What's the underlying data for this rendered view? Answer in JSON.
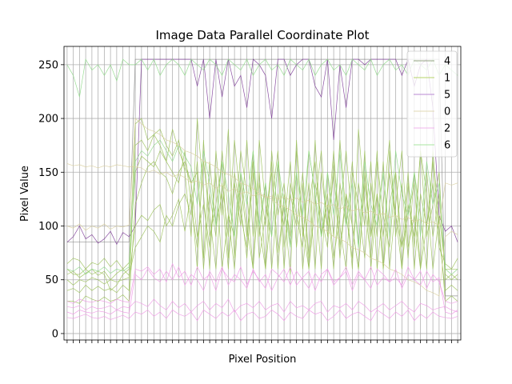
{
  "chart_data": {
    "type": "line",
    "title": "Image Data Parallel Coordinate Plot",
    "xlabel": "Pixel Position",
    "ylabel": "Pixel Value",
    "ylim": [
      -6,
      267
    ],
    "yticks": [
      0,
      50,
      100,
      150,
      200,
      250
    ],
    "x_count": 64,
    "grid": true,
    "legend": {
      "placement": "top-right",
      "entries": [
        {
          "label": "4",
          "color": "#94a383"
        },
        {
          "label": "1",
          "color": "#b5d36a"
        },
        {
          "label": "5",
          "color": "#b88ad3"
        },
        {
          "label": "0",
          "color": "#e0d9b4"
        },
        {
          "label": "2",
          "color": "#f0b4ec"
        },
        {
          "label": "6",
          "color": "#a8e6a0"
        }
      ]
    },
    "series": [
      {
        "class": "4",
        "color": "#8a8a8a",
        "values": [
          85,
          85,
          85,
          85,
          85,
          85,
          85,
          85,
          85,
          85,
          85,
          255,
          255,
          255,
          255,
          255,
          255,
          255,
          255,
          255,
          255,
          255,
          255,
          255,
          255,
          255,
          255,
          255,
          255,
          255,
          255,
          255,
          255,
          255,
          255,
          255,
          255,
          255,
          255,
          255,
          255,
          255,
          255,
          255,
          255,
          255,
          255,
          255,
          255,
          255,
          255,
          255,
          255,
          255,
          255,
          255,
          255,
          255,
          255,
          255,
          255,
          35,
          35,
          35
        ]
      },
      {
        "class": "5",
        "color": "#7d3c98",
        "values": [
          85,
          90,
          100,
          88,
          92,
          84,
          88,
          95,
          83,
          94,
          90,
          100,
          255,
          255,
          255,
          255,
          255,
          255,
          255,
          255,
          255,
          230,
          255,
          200,
          255,
          220,
          255,
          230,
          240,
          210,
          255,
          250,
          240,
          200,
          255,
          255,
          240,
          250,
          255,
          255,
          230,
          220,
          255,
          180,
          250,
          210,
          255,
          255,
          250,
          255,
          255,
          255,
          255,
          255,
          240,
          255,
          230,
          250,
          255,
          210,
          110,
          95,
          100,
          85
        ]
      },
      {
        "class": "1a",
        "color": "#9bc15a",
        "values": [
          60,
          55,
          55,
          60,
          55,
          58,
          55,
          40,
          45,
          55,
          60,
          195,
          200,
          180,
          185,
          175,
          160,
          190,
          170,
          155,
          140,
          90,
          120,
          80,
          150,
          60,
          110,
          90,
          170,
          130,
          60,
          140,
          100,
          160,
          75,
          120,
          55,
          180,
          90,
          140,
          60,
          150,
          100,
          170,
          80,
          130,
          60,
          190,
          120,
          70,
          160,
          110,
          80,
          150,
          60,
          120,
          90,
          170,
          130,
          60,
          110,
          60,
          60,
          60
        ]
      },
      {
        "class": "1b",
        "color": "#9bc15a",
        "values": [
          30,
          30,
          28,
          35,
          32,
          30,
          34,
          30,
          32,
          36,
          30,
          120,
          140,
          155,
          160,
          150,
          145,
          130,
          150,
          160,
          140,
          150,
          70,
          160,
          100,
          130,
          60,
          150,
          110,
          80,
          170,
          90,
          140,
          60,
          130,
          100,
          160,
          80,
          140,
          60,
          120,
          170,
          90,
          150,
          70,
          130,
          100,
          60,
          140,
          90,
          170,
          60,
          120,
          150,
          80,
          110,
          140,
          60,
          100,
          160,
          90,
          40,
          45,
          40
        ]
      },
      {
        "class": "1c",
        "color": "#9bc15a",
        "values": [
          50,
          45,
          50,
          48,
          52,
          50,
          46,
          50,
          48,
          50,
          52,
          100,
          110,
          105,
          115,
          120,
          100,
          110,
          125,
          95,
          130,
          60,
          180,
          90,
          120,
          160,
          70,
          140,
          100,
          180,
          90,
          150,
          60,
          120,
          170,
          80,
          130,
          100,
          150,
          70,
          180,
          90,
          120,
          60,
          140,
          100,
          160,
          80,
          170,
          60,
          130,
          90,
          150,
          110,
          60,
          140,
          80,
          170,
          90,
          120,
          150,
          50,
          55,
          50
        ]
      },
      {
        "class": "1d",
        "color": "#9bc15a",
        "values": [
          40,
          42,
          38,
          45,
          40,
          44,
          40,
          42,
          38,
          45,
          40,
          175,
          180,
          170,
          185,
          190,
          175,
          165,
          180,
          150,
          90,
          200,
          130,
          60,
          170,
          110,
          190,
          70,
          150,
          100,
          60,
          180,
          120,
          90,
          160,
          60,
          140,
          110,
          80,
          170,
          130,
          60,
          150,
          90,
          180,
          110,
          70,
          140,
          100,
          160,
          60,
          120,
          180,
          90,
          140,
          70,
          150,
          110,
          60,
          170,
          100,
          30,
          35,
          30
        ]
      },
      {
        "class": "1e",
        "color": "#9bc15a",
        "values": [
          65,
          70,
          68,
          60,
          66,
          64,
          70,
          62,
          68,
          60,
          66,
          150,
          165,
          160,
          155,
          170,
          160,
          150,
          140,
          170,
          120,
          80,
          160,
          110,
          60,
          140,
          90,
          180,
          120,
          70,
          150,
          100,
          60,
          170,
          110,
          140,
          80,
          150,
          60,
          120,
          160,
          90,
          130,
          70,
          110,
          170,
          100,
          60,
          150,
          90,
          130,
          60,
          170,
          110,
          80,
          150,
          60,
          130,
          100,
          140,
          80,
          65,
          60,
          70
        ]
      },
      {
        "class": "1f",
        "color": "#9bc15a",
        "values": [
          55,
          58,
          52,
          56,
          60,
          54,
          58,
          50,
          56,
          60,
          54,
          80,
          90,
          100,
          95,
          85,
          110,
          100,
          120,
          130,
          110,
          160,
          60,
          130,
          90,
          170,
          110,
          60,
          140,
          90,
          160,
          70,
          110,
          150,
          60,
          130,
          90,
          170,
          100,
          60,
          140,
          110,
          80,
          160,
          100,
          60,
          150,
          120,
          70,
          140,
          90,
          160,
          60,
          120,
          170,
          80,
          110,
          60,
          150,
          90,
          130,
          55,
          50,
          55
        ]
      },
      {
        "class": "6a",
        "color": "#8fd98a",
        "values": [
          250,
          240,
          220,
          255,
          245,
          250,
          240,
          250,
          235,
          255,
          250,
          250,
          255,
          245,
          255,
          240,
          250,
          255,
          250,
          240,
          255,
          250,
          245,
          255,
          250,
          240,
          255,
          250,
          245,
          255,
          240,
          250,
          255,
          245,
          250,
          240,
          255,
          250,
          245,
          255,
          240,
          250,
          255,
          245,
          250,
          240,
          255,
          250,
          245,
          255,
          240,
          250,
          255,
          245,
          250,
          240,
          255,
          250,
          245,
          255,
          240,
          250,
          245,
          240
        ]
      },
      {
        "class": "6b",
        "color": "#8fd98a",
        "values": [
          60,
          58,
          62,
          55,
          60,
          58,
          62,
          56,
          60,
          58,
          62,
          160,
          170,
          165,
          175,
          180,
          170,
          160,
          175,
          165,
          155,
          120,
          170,
          140,
          100,
          160,
          130,
          90,
          150,
          120,
          170,
          100,
          140,
          90,
          160,
          120,
          80,
          150,
          110,
          170,
          130,
          90,
          150,
          110,
          170,
          100,
          140,
          80,
          160,
          120,
          100,
          150,
          90,
          170,
          130,
          110,
          150,
          90,
          160,
          120,
          140,
          60,
          55,
          60
        ]
      },
      {
        "class": "0a",
        "color": "#d9cf9e",
        "values": [
          158,
          156,
          157,
          155,
          156,
          154,
          156,
          155,
          157,
          156,
          155,
          155,
          154,
          150,
          152,
          148,
          150,
          146,
          148,
          145,
          140,
          142,
          138,
          140,
          135,
          138,
          132,
          135,
          130,
          132,
          128,
          130,
          126,
          128,
          125,
          127,
          124,
          126,
          122,
          124,
          120,
          122,
          118,
          120,
          116,
          118,
          114,
          116,
          112,
          114,
          110,
          112,
          108,
          110,
          106,
          108,
          104,
          106,
          102,
          104,
          100,
          140,
          138,
          140
        ]
      },
      {
        "class": "0b",
        "color": "#d9cf9e",
        "values": [
          100,
          98,
          102,
          96,
          100,
          98,
          102,
          97,
          100,
          99,
          101,
          200,
          195,
          190,
          188,
          185,
          180,
          178,
          175,
          170,
          168,
          165,
          160,
          158,
          155,
          150,
          148,
          145,
          140,
          138,
          135,
          130,
          128,
          125,
          120,
          118,
          115,
          110,
          108,
          105,
          100,
          98,
          95,
          90,
          88,
          85,
          80,
          78,
          75,
          70,
          68,
          65,
          60,
          58,
          55,
          50,
          48,
          45,
          40,
          38,
          35,
          90,
          95,
          92
        ]
      },
      {
        "class": "2a",
        "color": "#ee99e6",
        "values": [
          20,
          18,
          22,
          20,
          19,
          21,
          20,
          18,
          22,
          20,
          19,
          55,
          50,
          60,
          52,
          48,
          58,
          50,
          62,
          45,
          55,
          50,
          40,
          58,
          48,
          62,
          45,
          55,
          50,
          42,
          60,
          48,
          55,
          40,
          52,
          60,
          45,
          58,
          50,
          42,
          56,
          48,
          60,
          45,
          52,
          58,
          40,
          55,
          50,
          62,
          45,
          52,
          48,
          60,
          42,
          55,
          50,
          45,
          58,
          48,
          52,
          20,
          18,
          22
        ]
      },
      {
        "class": "2b",
        "color": "#ee99e6",
        "values": [
          30,
          28,
          32,
          30,
          29,
          31,
          30,
          28,
          32,
          30,
          29,
          60,
          58,
          62,
          55,
          60,
          48,
          65,
          52,
          58,
          45,
          62,
          50,
          55,
          40,
          60,
          52,
          48,
          62,
          45,
          58,
          50,
          42,
          60,
          55,
          48,
          62,
          45,
          52,
          58,
          40,
          55,
          60,
          48,
          52,
          62,
          45,
          58,
          50,
          42,
          60,
          55,
          48,
          52,
          45,
          62,
          50,
          58,
          42,
          55,
          48,
          30,
          28,
          30
        ]
      },
      {
        "class": "2c",
        "color": "#ee99e6",
        "values": [
          25,
          24,
          26,
          22,
          25,
          23,
          24,
          26,
          22,
          25,
          24,
          30,
          28,
          25,
          32,
          26,
          22,
          30,
          24,
          28,
          20,
          26,
          30,
          22,
          28,
          24,
          32,
          20,
          26,
          28,
          24,
          30,
          22,
          26,
          28,
          20,
          30,
          24,
          26,
          22,
          28,
          30,
          20,
          26,
          24,
          28,
          22,
          30,
          26,
          20,
          24,
          28,
          22,
          26,
          30,
          24,
          20,
          28,
          26,
          22,
          24,
          25,
          22,
          20
        ]
      },
      {
        "class": "2d",
        "color": "#ee99e6",
        "values": [
          15,
          14,
          16,
          18,
          15,
          14,
          16,
          13,
          15,
          17,
          14,
          20,
          18,
          22,
          16,
          20,
          14,
          22,
          18,
          16,
          20,
          12,
          22,
          18,
          14,
          20,
          16,
          22,
          12,
          18,
          20,
          14,
          16,
          22,
          18,
          12,
          20,
          16,
          14,
          22,
          18,
          20,
          12,
          16,
          22,
          14,
          18,
          20,
          16,
          12,
          22,
          18,
          14,
          20,
          16,
          22,
          12,
          18,
          14,
          20,
          16,
          15,
          14,
          16
        ]
      }
    ]
  }
}
